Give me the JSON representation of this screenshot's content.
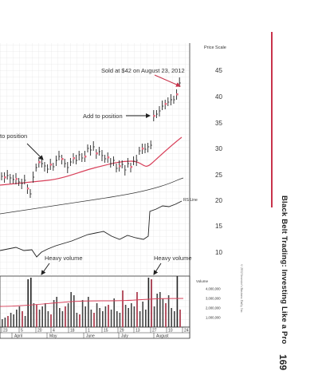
{
  "page": {
    "running_title": "Black Belt Trading: Investing Like a Pro",
    "page_number": "169",
    "copyright": "©2012 Investor's Business Daily, Inc.",
    "accent_color": "#c8334b"
  },
  "annotations": {
    "sold": "Sold at $42 on August 23, 2012",
    "add": "Add to position",
    "add_left": "to position",
    "heavy_volume_1": "Heavy volume",
    "heavy_volume_2": "Heavy volume",
    "rs_line": "RS Line"
  },
  "chart_data": {
    "type": "stock-chart",
    "price_axis_title": "Price Scale",
    "price_ticks": [
      "45",
      "40",
      "35",
      "30",
      "25",
      "20",
      "15",
      "10"
    ],
    "volume_axis_title": "Volume",
    "volume_ticks": [
      "4,000,000",
      "3,000,000",
      "2,000,000",
      "1,000,000"
    ],
    "date_ticks": [
      "23",
      "5",
      "20",
      "4",
      "18",
      "1",
      "15",
      "29",
      "13",
      "27",
      "10",
      "24"
    ],
    "month_labels": [
      "April",
      "May",
      "June",
      "July",
      "August"
    ],
    "colors": {
      "bars": "#333333",
      "moving_average": "#d8405a",
      "rs_line": "#222222",
      "grid": "#cfcfcf"
    }
  }
}
